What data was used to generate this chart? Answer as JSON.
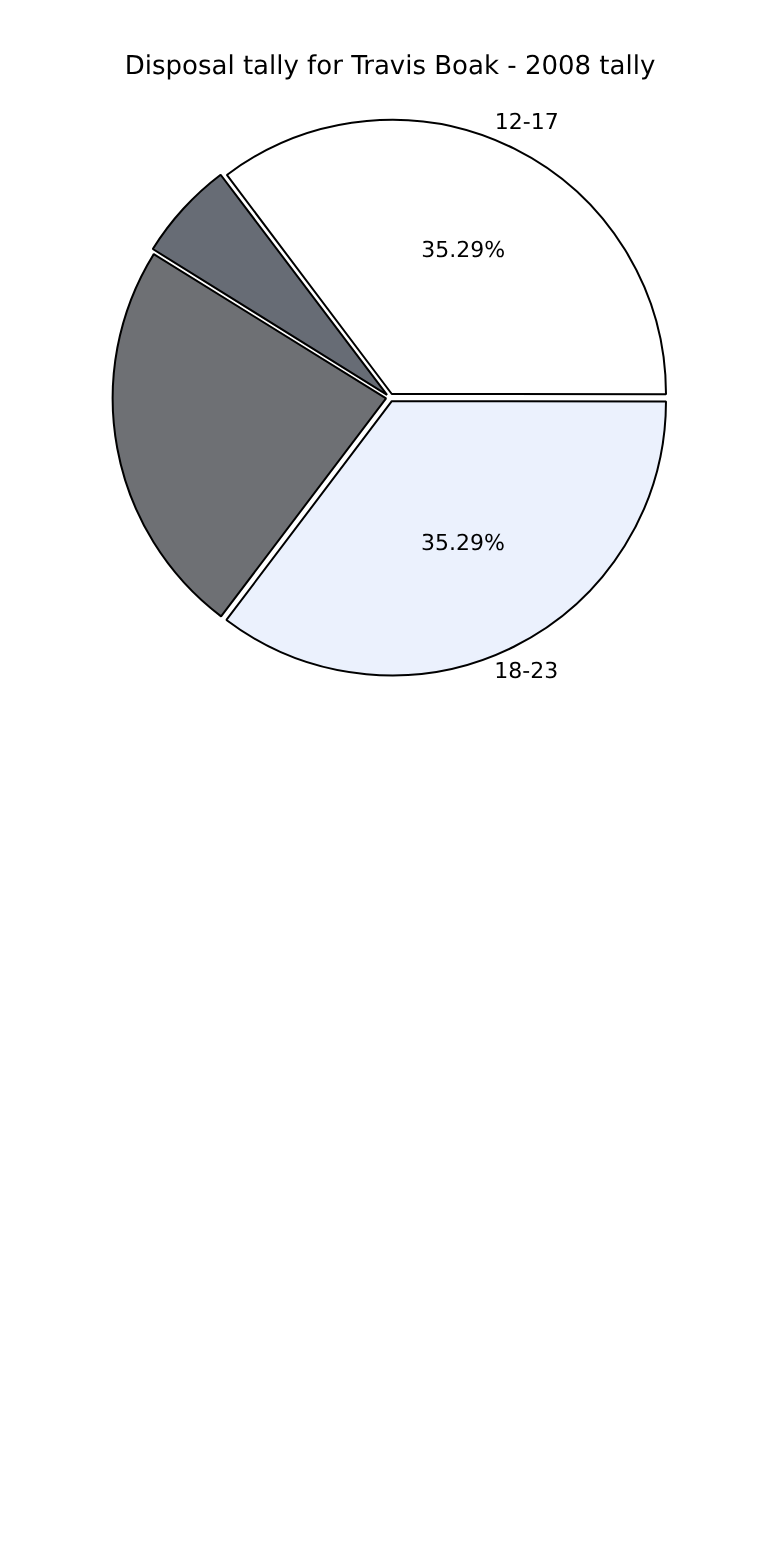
{
  "chart_data": {
    "type": "pie",
    "title": "Disposal tally for Travis Boak - 2008 tally",
    "categories": [
      "12-17",
      "18-23",
      null,
      null
    ],
    "values": [
      35.29,
      35.29,
      23.53,
      5.88
    ],
    "colors": [
      "#ffffff",
      "#ebf1fd",
      "#6e7074",
      "#676c75"
    ],
    "value_labels": [
      "35.29%",
      "35.29%",
      null,
      null
    ],
    "legend": false
  }
}
